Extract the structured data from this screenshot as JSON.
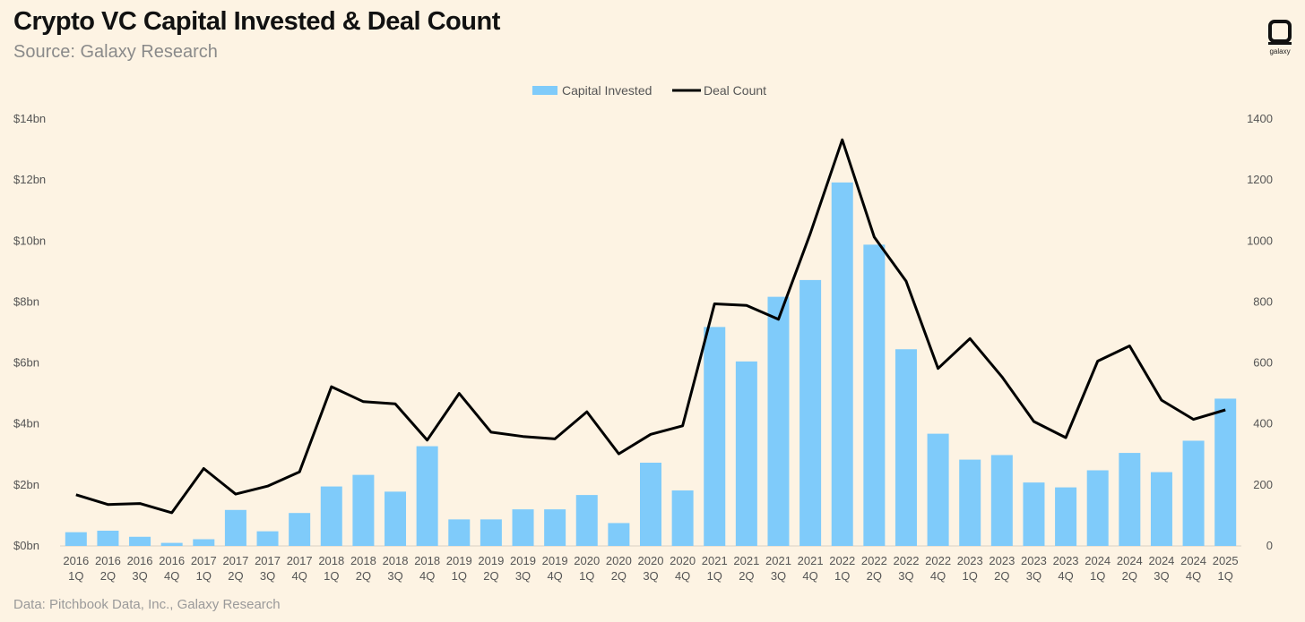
{
  "header": {
    "title": "Crypto VC Capital Invested & Deal Count",
    "subtitle": "Source: Galaxy Research"
  },
  "footer": {
    "source": "Data: Pitchbook Data, Inc., Galaxy Research"
  },
  "logo": {
    "label": "galaxy",
    "icon": "galaxy-logo-icon"
  },
  "colors": {
    "bar": "#7fcbfa",
    "line": "#000000",
    "background": "#fdf3e3"
  },
  "chart_data": {
    "type": "bar",
    "title": "Crypto VC Capital Invested & Deal Count",
    "subtitle": "Source: Galaxy Research",
    "legend_position": "top-center",
    "grid": false,
    "categories": [
      [
        "2016",
        "1Q"
      ],
      [
        "2016",
        "2Q"
      ],
      [
        "2016",
        "3Q"
      ],
      [
        "2016",
        "4Q"
      ],
      [
        "2017",
        "1Q"
      ],
      [
        "2017",
        "2Q"
      ],
      [
        "2017",
        "3Q"
      ],
      [
        "2017",
        "4Q"
      ],
      [
        "2018",
        "1Q"
      ],
      [
        "2018",
        "2Q"
      ],
      [
        "2018",
        "3Q"
      ],
      [
        "2018",
        "4Q"
      ],
      [
        "2019",
        "1Q"
      ],
      [
        "2019",
        "2Q"
      ],
      [
        "2019",
        "3Q"
      ],
      [
        "2019",
        "4Q"
      ],
      [
        "2020",
        "1Q"
      ],
      [
        "2020",
        "2Q"
      ],
      [
        "2020",
        "3Q"
      ],
      [
        "2020",
        "4Q"
      ],
      [
        "2021",
        "1Q"
      ],
      [
        "2021",
        "2Q"
      ],
      [
        "2021",
        "3Q"
      ],
      [
        "2021",
        "4Q"
      ],
      [
        "2022",
        "1Q"
      ],
      [
        "2022",
        "2Q"
      ],
      [
        "2022",
        "3Q"
      ],
      [
        "2022",
        "4Q"
      ],
      [
        "2023",
        "1Q"
      ],
      [
        "2023",
        "2Q"
      ],
      [
        "2023",
        "3Q"
      ],
      [
        "2023",
        "4Q"
      ],
      [
        "2024",
        "1Q"
      ],
      [
        "2024",
        "2Q"
      ],
      [
        "2024",
        "3Q"
      ],
      [
        "2024",
        "4Q"
      ],
      [
        "2025",
        "1Q"
      ]
    ],
    "left_axis": {
      "ylim": [
        0,
        14
      ],
      "ticks": [
        0,
        2,
        4,
        6,
        8,
        10,
        12,
        14
      ],
      "tick_labels": [
        "$0bn",
        "$2bn",
        "$4bn",
        "$6bn",
        "$8bn",
        "$10bn",
        "$12bn",
        "$14bn"
      ]
    },
    "right_axis": {
      "ylim": [
        0,
        1400
      ],
      "ticks": [
        0,
        200,
        400,
        600,
        800,
        1000,
        1200,
        1400
      ],
      "tick_labels": [
        "0",
        "200",
        "400",
        "600",
        "800",
        "1000",
        "1200",
        "1400"
      ]
    },
    "series": [
      {
        "name": "Capital Invested",
        "type": "bar",
        "axis": "left",
        "values": [
          0.45,
          0.5,
          0.3,
          0.1,
          0.22,
          1.18,
          0.48,
          1.08,
          1.95,
          2.33,
          1.78,
          3.27,
          0.87,
          0.87,
          1.2,
          1.2,
          1.67,
          0.75,
          2.73,
          1.82,
          7.18,
          6.05,
          8.17,
          8.72,
          11.92,
          9.88,
          6.45,
          3.68,
          2.83,
          2.98,
          2.08,
          1.92,
          2.48,
          3.05,
          2.42,
          3.45,
          4.83
        ]
      },
      {
        "name": "Deal Count",
        "type": "line",
        "axis": "right",
        "values": [
          168,
          136,
          139,
          109,
          254,
          170,
          196,
          243,
          522,
          473,
          466,
          347,
          500,
          373,
          359,
          351,
          440,
          302,
          366,
          394,
          794,
          789,
          743,
          1025,
          1332,
          1013,
          868,
          582,
          680,
          555,
          408,
          355,
          606,
          656,
          478,
          415,
          446
        ]
      }
    ]
  }
}
